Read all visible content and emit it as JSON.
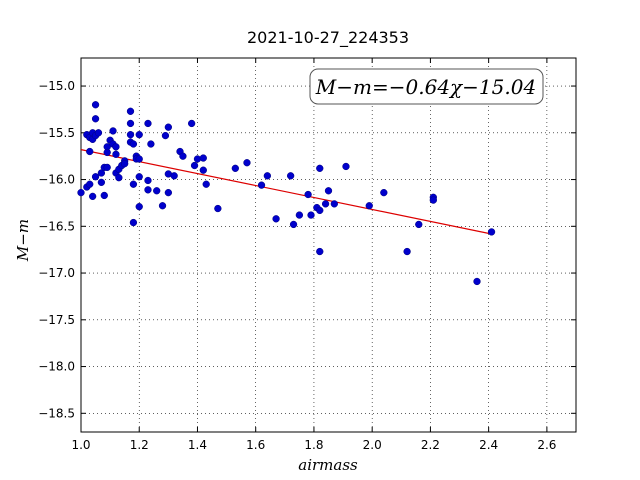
{
  "chart_data": {
    "type": "scatter",
    "title": "2021-10-27_224353",
    "xlabel": "airmass",
    "ylabel": "M−m",
    "annotation": "M−m=−0.64χ−15.04",
    "xlim": [
      1.0,
      2.7
    ],
    "ylim": [
      -18.7,
      -14.7
    ],
    "y_inverted": false,
    "grid": true,
    "xticks": [
      1.0,
      1.2,
      1.4,
      1.6,
      1.8,
      2.0,
      2.2,
      2.4,
      2.6
    ],
    "xtick_labels": [
      "1.0",
      "1.2",
      "1.4",
      "1.6",
      "1.8",
      "2.0",
      "2.2",
      "2.4",
      "2.6"
    ],
    "yticks": [
      -15.0,
      -15.5,
      -16.0,
      -16.5,
      -17.0,
      -17.5,
      -18.0,
      -18.5
    ],
    "ytick_labels": [
      "−15.0",
      "−15.5",
      "−16.0",
      "−16.5",
      "−17.0",
      "−17.5",
      "−18.0",
      "−18.5"
    ],
    "point_color": "#0000cc",
    "line_color": "#dd0000",
    "fit": {
      "slope": -0.64,
      "intercept": -15.04,
      "x_range": [
        1.0,
        2.41
      ]
    },
    "series": [
      {
        "points": [
          [
            1.0,
            -16.14
          ],
          [
            1.02,
            -16.08
          ],
          [
            1.03,
            -16.05
          ],
          [
            1.02,
            -15.52
          ],
          [
            1.03,
            -15.55
          ],
          [
            1.04,
            -15.5
          ],
          [
            1.04,
            -15.57
          ],
          [
            1.05,
            -15.2
          ],
          [
            1.05,
            -15.35
          ],
          [
            1.05,
            -15.53
          ],
          [
            1.06,
            -15.5
          ],
          [
            1.04,
            -16.18
          ],
          [
            1.05,
            -15.97
          ],
          [
            1.03,
            -15.7
          ],
          [
            1.07,
            -15.93
          ],
          [
            1.07,
            -16.03
          ],
          [
            1.08,
            -16.17
          ],
          [
            1.08,
            -15.87
          ],
          [
            1.09,
            -15.87
          ],
          [
            1.09,
            -15.65
          ],
          [
            1.09,
            -15.71
          ],
          [
            1.1,
            -15.58
          ],
          [
            1.11,
            -15.48
          ],
          [
            1.11,
            -15.62
          ],
          [
            1.12,
            -15.65
          ],
          [
            1.12,
            -15.73
          ],
          [
            1.12,
            -15.93
          ],
          [
            1.13,
            -15.98
          ],
          [
            1.13,
            -15.89
          ],
          [
            1.14,
            -15.85
          ],
          [
            1.15,
            -15.8
          ],
          [
            1.15,
            -15.83
          ],
          [
            1.17,
            -15.27
          ],
          [
            1.17,
            -15.4
          ],
          [
            1.17,
            -15.52
          ],
          [
            1.17,
            -15.6
          ],
          [
            1.18,
            -15.62
          ],
          [
            1.18,
            -16.05
          ],
          [
            1.18,
            -16.46
          ],
          [
            1.19,
            -15.75
          ],
          [
            1.19,
            -15.78
          ],
          [
            1.2,
            -15.78
          ],
          [
            1.2,
            -15.97
          ],
          [
            1.2,
            -16.29
          ],
          [
            1.2,
            -15.52
          ],
          [
            1.23,
            -15.4
          ],
          [
            1.23,
            -16.11
          ],
          [
            1.23,
            -16.01
          ],
          [
            1.24,
            -15.62
          ],
          [
            1.26,
            -16.12
          ],
          [
            1.28,
            -16.28
          ],
          [
            1.29,
            -15.53
          ],
          [
            1.3,
            -15.44
          ],
          [
            1.3,
            -15.94
          ],
          [
            1.3,
            -16.14
          ],
          [
            1.32,
            -15.96
          ],
          [
            1.34,
            -15.7
          ],
          [
            1.35,
            -15.75
          ],
          [
            1.38,
            -15.4
          ],
          [
            1.39,
            -15.85
          ],
          [
            1.4,
            -15.78
          ],
          [
            1.42,
            -15.77
          ],
          [
            1.42,
            -15.9
          ],
          [
            1.43,
            -16.05
          ],
          [
            1.47,
            -16.31
          ],
          [
            1.53,
            -15.88
          ],
          [
            1.57,
            -15.82
          ],
          [
            1.62,
            -16.06
          ],
          [
            1.64,
            -15.96
          ],
          [
            1.67,
            -16.42
          ],
          [
            1.72,
            -15.96
          ],
          [
            1.73,
            -16.48
          ],
          [
            1.75,
            -16.38
          ],
          [
            1.78,
            -16.16
          ],
          [
            1.79,
            -16.38
          ],
          [
            1.81,
            -16.3
          ],
          [
            1.82,
            -15.88
          ],
          [
            1.82,
            -16.33
          ],
          [
            1.82,
            -16.77
          ],
          [
            1.84,
            -16.26
          ],
          [
            1.85,
            -16.12
          ],
          [
            1.87,
            -16.26
          ],
          [
            1.91,
            -15.86
          ],
          [
            1.99,
            -16.28
          ],
          [
            2.04,
            -16.14
          ],
          [
            2.12,
            -16.77
          ],
          [
            2.16,
            -16.48
          ],
          [
            2.21,
            -16.19
          ],
          [
            2.21,
            -16.22
          ],
          [
            2.36,
            -17.09
          ],
          [
            2.41,
            -16.56
          ]
        ]
      }
    ]
  }
}
